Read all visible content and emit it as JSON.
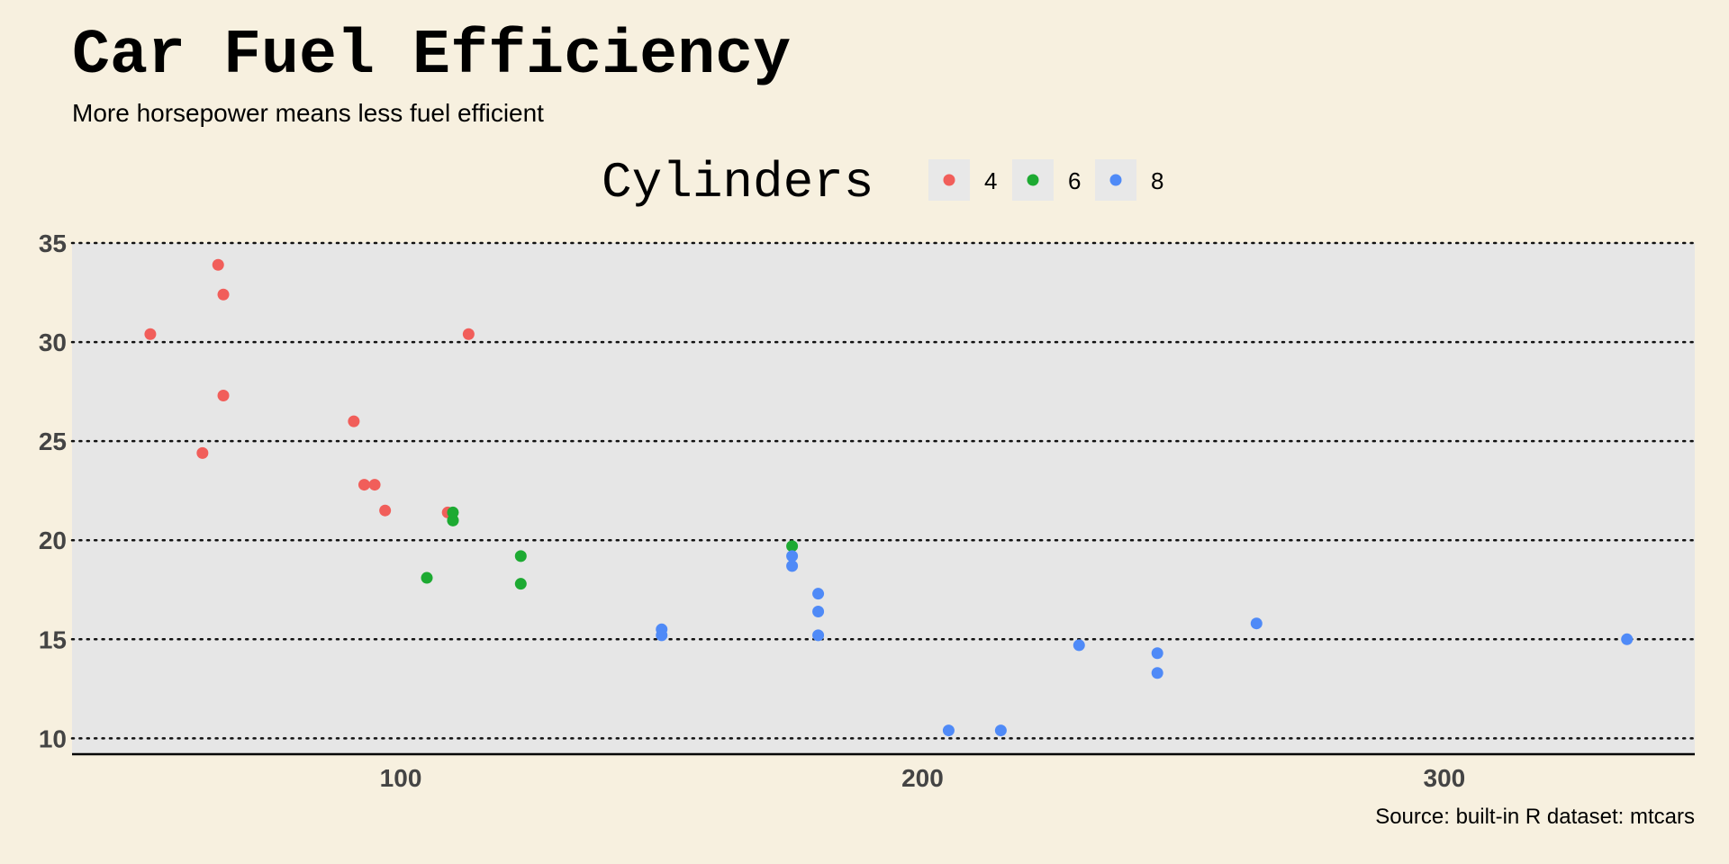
{
  "chart_data": {
    "type": "scatter",
    "title": "Car Fuel Efficiency",
    "subtitle": "More horsepower means less fuel efficient",
    "caption": "Source: built-in R dataset: mtcars",
    "xlabel": "",
    "ylabel": "",
    "xlim": [
      37,
      348
    ],
    "ylim": [
      9.2,
      35
    ],
    "x_ticks": [
      100,
      200,
      300
    ],
    "y_ticks": [
      10,
      15,
      20,
      25,
      30,
      35
    ],
    "grid": "horizontal dotted",
    "legend": {
      "title": "Cylinders",
      "position": "top",
      "items": [
        {
          "label": "4",
          "color": "#F15E5A"
        },
        {
          "label": "6",
          "color": "#1DAA32"
        },
        {
          "label": "8",
          "color": "#4F8AF7"
        }
      ]
    },
    "series": [
      {
        "name": "4",
        "color": "#F15E5A",
        "points": [
          [
            52,
            30.4
          ],
          [
            62,
            24.4
          ],
          [
            65,
            33.9
          ],
          [
            66,
            32.4
          ],
          [
            66,
            27.3
          ],
          [
            91,
            26.0
          ],
          [
            93,
            22.8
          ],
          [
            95,
            22.8
          ],
          [
            97,
            21.5
          ],
          [
            109,
            21.4
          ],
          [
            113,
            30.4
          ]
        ]
      },
      {
        "name": "6",
        "color": "#1DAA32",
        "points": [
          [
            105,
            18.1
          ],
          [
            110,
            21.0
          ],
          [
            110,
            21.0
          ],
          [
            110,
            21.4
          ],
          [
            123,
            19.2
          ],
          [
            123,
            17.8
          ],
          [
            175,
            19.7
          ]
        ]
      },
      {
        "name": "8",
        "color": "#4F8AF7",
        "points": [
          [
            150,
            15.5
          ],
          [
            150,
            15.2
          ],
          [
            175,
            18.7
          ],
          [
            175,
            19.2
          ],
          [
            180,
            16.4
          ],
          [
            180,
            17.3
          ],
          [
            180,
            15.2
          ],
          [
            205,
            10.4
          ],
          [
            215,
            10.4
          ],
          [
            230,
            14.7
          ],
          [
            245,
            14.3
          ],
          [
            245,
            13.3
          ],
          [
            264,
            15.8
          ],
          [
            335,
            15.0
          ]
        ]
      }
    ]
  }
}
